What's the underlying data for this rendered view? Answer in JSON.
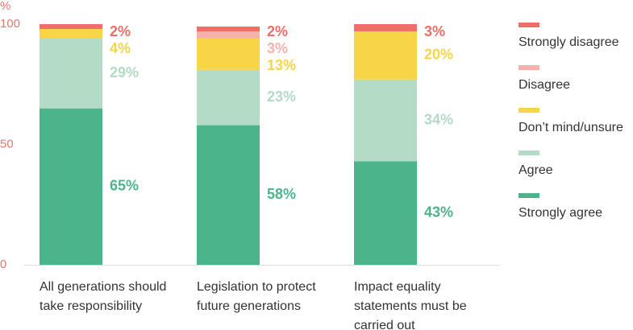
{
  "chart_data": {
    "type": "stacked-bar",
    "y_unit": "%",
    "categories": [
      "All generations should take responsibility",
      "Legislation to protect future generations",
      "Impact equality statements must be carried out"
    ],
    "series": [
      {
        "name": "Strongly agree",
        "color": "#4bb48a",
        "values": [
          65,
          58,
          43
        ],
        "value_labels": [
          "65%",
          "58%",
          "43%"
        ]
      },
      {
        "name": "Agree",
        "color": "#b3dbc6",
        "values": [
          29,
          23,
          34
        ],
        "value_labels": [
          "29%",
          "23%",
          "34%"
        ]
      },
      {
        "name": "Don’t mind/unsure",
        "color": "#f8d447",
        "values": [
          4,
          13,
          20
        ],
        "value_labels": [
          "4%",
          "13%",
          "20%"
        ]
      },
      {
        "name": "Disagree",
        "color": "#f5b2aa",
        "values": [
          null,
          3,
          null
        ],
        "value_labels": [
          null,
          "3%",
          null
        ]
      },
      {
        "name": "Strongly disagree",
        "color": "#ee6e68",
        "values": [
          2,
          2,
          3
        ],
        "value_labels": [
          "2%",
          "2%",
          "3%"
        ]
      }
    ],
    "ylim": [
      0,
      100
    ],
    "yticks": [
      0,
      50,
      100
    ]
  }
}
